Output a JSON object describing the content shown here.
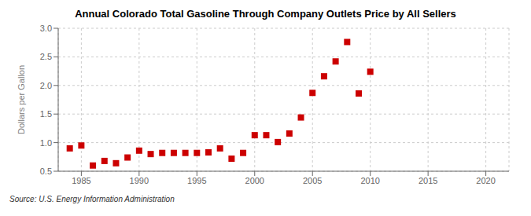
{
  "chart_data": {
    "type": "scatter",
    "title": "Annual Colorado Total Gasoline Through Company Outlets Price by All Sellers",
    "ylabel": "Dollars per Gallon",
    "annotations": [
      "Source: U.S. Energy Information Administration"
    ],
    "x": [
      1984,
      1985,
      1986,
      1987,
      1988,
      1989,
      1990,
      1991,
      1992,
      1993,
      1994,
      1995,
      1996,
      1997,
      1998,
      1999,
      2000,
      2001,
      2002,
      2003,
      2004,
      2005,
      2006,
      2007,
      2008,
      2009,
      2010
    ],
    "values": [
      0.9,
      0.95,
      0.6,
      0.68,
      0.64,
      0.74,
      0.86,
      0.8,
      0.82,
      0.82,
      0.82,
      0.82,
      0.83,
      0.9,
      0.72,
      0.82,
      1.13,
      1.13,
      1.01,
      1.16,
      1.44,
      1.87,
      2.16,
      2.42,
      2.76,
      1.86,
      2.24
    ],
    "color": "#cc0000",
    "marker": "square",
    "xlim": [
      1983,
      2022
    ],
    "xticks": [
      1985,
      1990,
      1995,
      2000,
      2005,
      2010,
      2015,
      2020
    ],
    "ylim": [
      0.5,
      3.0
    ],
    "yticks": [
      0.5,
      {
        "value": 1,
        "label": "1.0"
      },
      1.5,
      {
        "value": 2,
        "label": "2.0"
      },
      2.5,
      {
        "value": 3,
        "label": "3.0"
      }
    ],
    "grid": true
  }
}
